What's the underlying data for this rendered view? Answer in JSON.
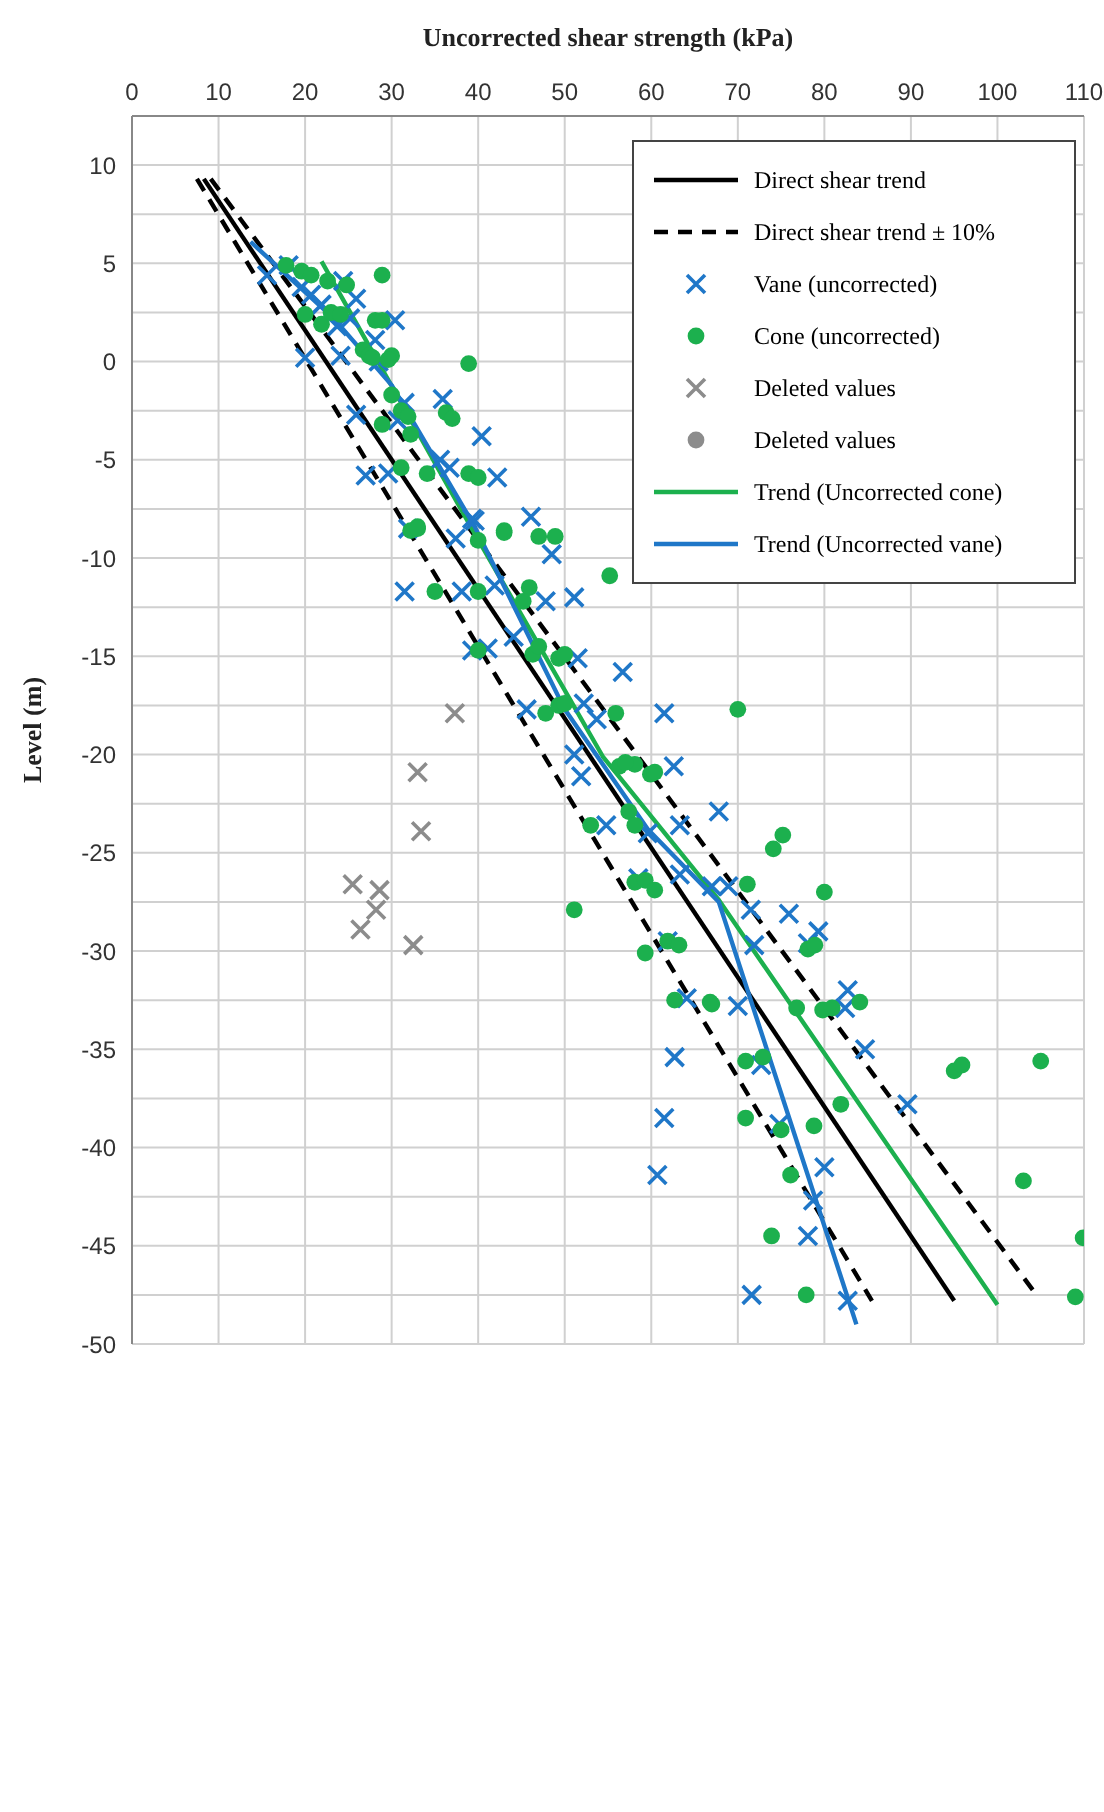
{
  "chart_data": {
    "type": "scatter",
    "xlabel": "Uncorrected shear strength (kPa)",
    "ylabel": "Level (m)",
    "xlim": [
      0,
      110
    ],
    "xticks": [
      0,
      10,
      20,
      30,
      40,
      50,
      60,
      70,
      80,
      90,
      100,
      110
    ],
    "ylim": [
      -50,
      12.5
    ],
    "yticks": [
      -50,
      {
        "value": -47.5,
        "label": null
      },
      -45,
      {
        "value": -42.5,
        "label": null
      },
      -40,
      {
        "value": -37.5,
        "label": null
      },
      -35,
      {
        "value": -32.5,
        "label": null
      },
      -30,
      {
        "value": -27.5,
        "label": null
      },
      -25,
      {
        "value": -22.5,
        "label": null
      },
      -20,
      {
        "value": -17.5,
        "label": null
      },
      -15,
      {
        "value": -12.5,
        "label": null
      },
      -10,
      {
        "value": -7.5,
        "label": null
      },
      -5,
      {
        "value": -2.5,
        "label": null
      },
      0,
      {
        "value": 2.5,
        "label": null
      },
      5,
      {
        "value": 7.5,
        "label": null
      },
      10
    ],
    "grid": true,
    "legend": "top right",
    "series": [
      {
        "name": "Direct shear trend",
        "type": "line",
        "color": "#000000",
        "line_style": "solid",
        "x": [
          8.3,
          95
        ],
        "values": [
          9.3,
          -47.8
        ]
      },
      {
        "name": "Direct shear trend ± 10%",
        "type": "line",
        "color": "#000000",
        "line_style": "dashed",
        "x": [
          7.5,
          85.5
        ],
        "values": [
          9.3,
          -47.8
        ]
      },
      {
        "type": "line",
        "color": "#000000",
        "line_style": "dashed",
        "x": [
          9.1,
          104.5
        ],
        "values": [
          9.3,
          -47.5
        ]
      },
      {
        "name": "Vane (uncorrected)",
        "marker": "cross",
        "color": "#1f77c8",
        "x": [
          15.6,
          18.1,
          19.6,
          20.7,
          21.9,
          24.4,
          25.9,
          25.2,
          23.7,
          30.4,
          20,
          24.1,
          28.1,
          28.5,
          25.9,
          31.5,
          35.9,
          30.7,
          40.4,
          27,
          29.6,
          35.6,
          36.7,
          42.2,
          39.6,
          46.1,
          31.9,
          39.3,
          37.4,
          48.5,
          31.5,
          38.1,
          41.9,
          47.8,
          51.1,
          44.1,
          39.3,
          41.1,
          51.5,
          56.7,
          45.6,
          52.2,
          53.7,
          61.5,
          51.1,
          51.9,
          62.6,
          54.8,
          59.6,
          63.3,
          67.8,
          58.5,
          63.3,
          67,
          68.9,
          71.5,
          75.9,
          61.9,
          71.9,
          78.1,
          79.3,
          64.1,
          70,
          82.7,
          82.4,
          84.7,
          62.7,
          72.7,
          89.6,
          61.5,
          74.8,
          60.7,
          80,
          78.7,
          78.1,
          71.6,
          82.7
        ],
        "values": [
          4.4,
          4.9,
          3.8,
          3.4,
          2.9,
          4.1,
          3.2,
          2.2,
          1.8,
          2.1,
          0.2,
          0.3,
          1.1,
          0,
          -2.7,
          -2.1,
          -1.9,
          -3,
          -3.8,
          -5.8,
          -5.7,
          -5,
          -5.4,
          -5.9,
          -8.1,
          -7.9,
          -8.5,
          -8,
          -9,
          -9.8,
          -11.7,
          -11.7,
          -11.4,
          -12.2,
          -12,
          -14,
          -14.7,
          -14.6,
          -15.1,
          -15.8,
          -17.7,
          -17.4,
          -18.2,
          -17.9,
          -20,
          -21.1,
          -20.6,
          -23.6,
          -24,
          -23.6,
          -22.9,
          -26.3,
          -26.1,
          -26.7,
          -26.7,
          -27.9,
          -28.1,
          -29.5,
          -29.7,
          -29.6,
          -29,
          -32.4,
          -32.8,
          -32,
          -32.9,
          -35,
          -35.4,
          -35.8,
          -37.8,
          -38.5,
          -38.8,
          -41.4,
          -41,
          -42.7,
          -44.5,
          -47.5,
          -47.8
        ]
      },
      {
        "name": "Cone (uncorrected)",
        "marker": "circle",
        "color": "#1cb04e",
        "x": [
          17.8,
          19.6,
          20.7,
          22.6,
          28.9,
          24.8,
          20,
          21.9,
          23,
          24.1,
          28.1,
          28.9,
          26.7,
          27.4,
          27.8,
          30,
          29.6,
          38.9,
          30,
          31.1,
          31.9,
          36.3,
          37,
          28.9,
          32.2,
          31.1,
          34.1,
          38.9,
          40,
          33,
          43,
          32.2,
          33,
          40,
          43,
          47,
          48.9,
          55.2,
          35,
          40,
          45.9,
          45.2,
          40,
          46.3,
          47,
          49.3,
          50,
          47.8,
          49.3,
          50,
          55.9,
          70,
          56.3,
          58.1,
          59.9,
          57,
          60.4,
          57.4,
          53,
          58.1,
          75.2,
          74.1,
          58.1,
          59.3,
          60.4,
          71.1,
          80,
          51.1,
          61.9,
          63.2,
          59.3,
          78.1,
          78.9,
          67,
          62.7,
          66.8,
          76.8,
          79.8,
          80.9,
          84.1,
          70.9,
          72.9,
          95,
          95.9,
          105,
          70.9,
          75,
          78.8,
          81.9,
          76.1,
          103,
          73.9,
          109.9,
          77.9,
          109
        ],
        "values": [
          4.9,
          4.6,
          4.4,
          4.1,
          4.4,
          3.9,
          2.4,
          1.9,
          2.5,
          2.4,
          2.1,
          2.1,
          0.6,
          0.3,
          0.2,
          0.3,
          0.1,
          -0.1,
          -1.7,
          -2.5,
          -2.8,
          -2.6,
          -2.9,
          -3.2,
          -3.7,
          -5.4,
          -5.7,
          -5.7,
          -5.9,
          -8.4,
          -8.6,
          -8.6,
          -8.5,
          -9.1,
          -8.7,
          -8.9,
          -8.9,
          -10.9,
          -11.7,
          -11.7,
          -11.5,
          -12.2,
          -14.7,
          -14.9,
          -14.5,
          -15.1,
          -14.9,
          -17.9,
          -17.5,
          -17.4,
          -17.9,
          -17.7,
          -20.6,
          -20.5,
          -21,
          -20.4,
          -20.9,
          -22.9,
          -23.6,
          -23.6,
          -24.1,
          -24.8,
          -26.5,
          -26.4,
          -26.9,
          -26.6,
          -27,
          -27.9,
          -29.5,
          -29.7,
          -30.1,
          -29.9,
          -29.7,
          -32.7,
          -32.5,
          -32.6,
          -32.9,
          -33,
          -32.9,
          -32.6,
          -35.6,
          -35.4,
          -36.1,
          -35.8,
          -35.6,
          -38.5,
          -39.1,
          -38.9,
          -37.8,
          -41.4,
          -41.7,
          -44.5,
          -44.6,
          -47.5,
          -47.6
        ]
      },
      {
        "name": "Deleted values",
        "marker": "cross",
        "color": "#8c8c8c",
        "x": [
          37.3,
          33,
          33.4,
          25.5,
          28.6,
          28.2,
          26.4,
          32.5
        ],
        "values": [
          -17.9,
          -20.9,
          -23.9,
          -26.6,
          -26.9,
          -27.9,
          -28.9,
          -29.7
        ]
      },
      {
        "name": "Deleted values",
        "marker": "circle",
        "color": "#8c8c8c"
      },
      {
        "name": "Trend (Uncorrected cone)",
        "type": "line",
        "color": "#1cb04e",
        "line_style": "solid",
        "x": [
          21.9,
          39.4,
          54.4,
          67.8,
          100
        ],
        "values": [
          5.1,
          -8.6,
          -20.1,
          -27.4,
          -48
        ]
      },
      {
        "name": "Trend (Uncorrected vane)",
        "type": "line",
        "color": "#1f77c8",
        "line_style": "solid",
        "x": [
          13.7,
          23.3,
          30,
          39.6,
          50,
          59.6,
          67.8,
          83.7
        ],
        "values": [
          6.1,
          2.2,
          -1.2,
          -8.4,
          -17.7,
          -23.8,
          -27.5,
          -49
        ]
      }
    ]
  }
}
